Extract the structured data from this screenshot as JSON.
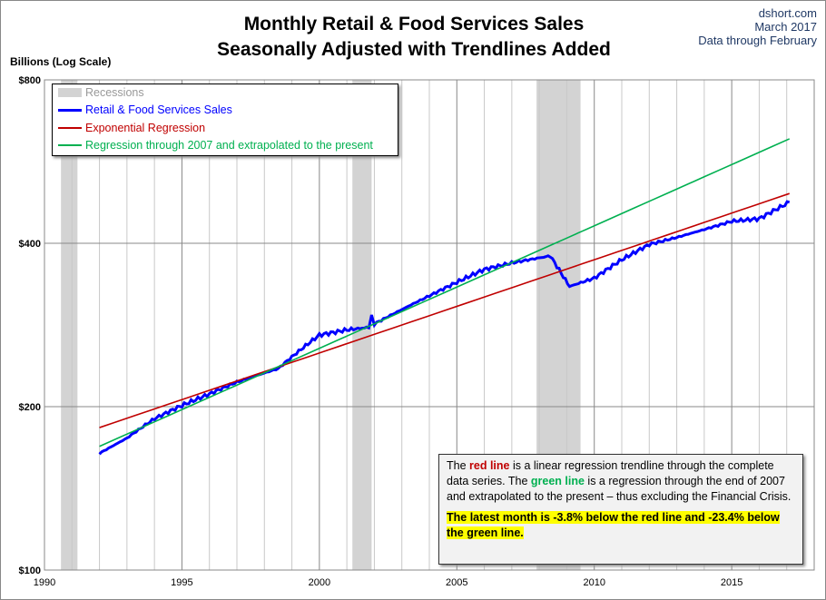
{
  "header": {
    "title1": "Monthly Retail & Food Services Sales",
    "title2": "Seasonally Adjusted with Trendlines Added",
    "source": "dshort.com",
    "date": "March 2017",
    "through": "Data through February"
  },
  "note": {
    "p1a": "The ",
    "red": "red line",
    "p1b": " is a  linear regression trendline  through the complete data series. The ",
    "green": "green line",
    "p1c": " is a regression through the end of 2007  and extrapolated to the present  – thus excluding the Financial Crisis.",
    "highlight": "The latest month is -3.8%  below the red line and -23.4% below the green line."
  },
  "chart_data": {
    "type": "line",
    "ylabel": "Billions (Log Scale)",
    "yscale": "log",
    "ylim": [
      100,
      800
    ],
    "yticks": [
      100,
      200,
      400,
      800
    ],
    "ytick_labels": [
      "$100",
      "$200",
      "$400",
      "$800"
    ],
    "xlim": [
      1990,
      2018
    ],
    "xticks": [
      1990,
      1995,
      2000,
      2005,
      2010,
      2015
    ],
    "xtick_labels": [
      "1990",
      "1995",
      "2000",
      "2005",
      "2010",
      "2015"
    ],
    "grid": true,
    "legend": "top-left",
    "recessions": {
      "name": "Recessions",
      "color": "#d3d3d3",
      "periods": [
        [
          1990.6,
          1991.2
        ],
        [
          2001.2,
          2001.9
        ],
        [
          2007.9,
          2009.5
        ]
      ]
    },
    "series": [
      {
        "name": "Retail & Food Services Sales",
        "color": "#0000ff",
        "x": [
          1992,
          1993,
          1994,
          1995,
          1996,
          1997,
          1998.5,
          1999.5,
          2000,
          2001,
          2001.8,
          2001.9,
          2002,
          2003,
          2004,
          2005,
          2006,
          2007,
          2008,
          2008.4,
          2008.8,
          2009.1,
          2010,
          2011,
          2012,
          2013,
          2014,
          2015,
          2016,
          2017.1
        ],
        "y": [
          164,
          175,
          190,
          201,
          211,
          222,
          235,
          259,
          271,
          277,
          280,
          295,
          284,
          302,
          320,
          339,
          358,
          368,
          376,
          379,
          352,
          333,
          345,
          373,
          398,
          410,
          424,
          439,
          444,
          476
        ]
      },
      {
        "name": "Exponential Regression",
        "color": "#c00000",
        "x": [
          1992,
          2017.1
        ],
        "y": [
          183,
          494
        ]
      },
      {
        "name": "Regression through 2007 and extrapolated to the present",
        "color": "#00b050",
        "x": [
          1992,
          2017.1
        ],
        "y": [
          169,
          623
        ]
      }
    ]
  }
}
